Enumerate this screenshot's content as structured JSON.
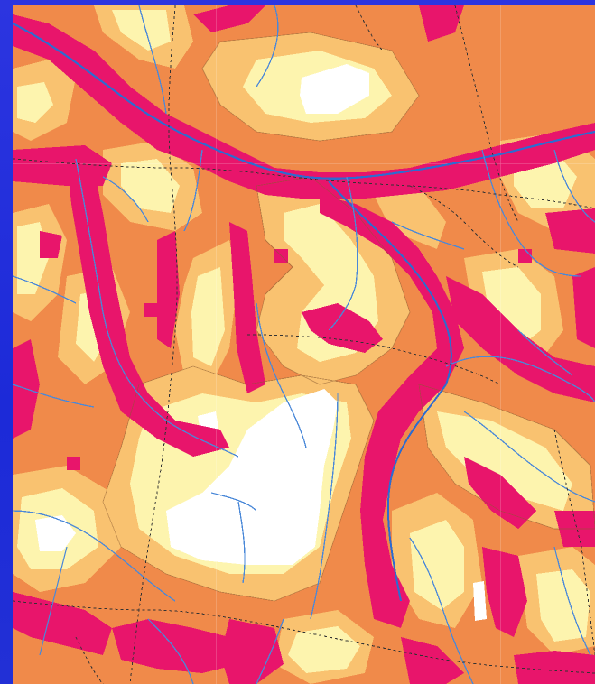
{
  "map": {
    "type": "raster-zone-map",
    "zones": [
      {
        "id": "zone-1",
        "color": "#e8156b"
      },
      {
        "id": "zone-2",
        "color": "#f2874a"
      },
      {
        "id": "zone-3",
        "color": "#f9c270"
      },
      {
        "id": "zone-4",
        "color": "#fdf4ae"
      },
      {
        "id": "zone-5",
        "color": "#ffffff"
      }
    ],
    "stream_color": "#4a88d8",
    "main_river_color": "#2d6bd0",
    "boundary_color": "#333333",
    "frame_color": "#2231d8"
  }
}
